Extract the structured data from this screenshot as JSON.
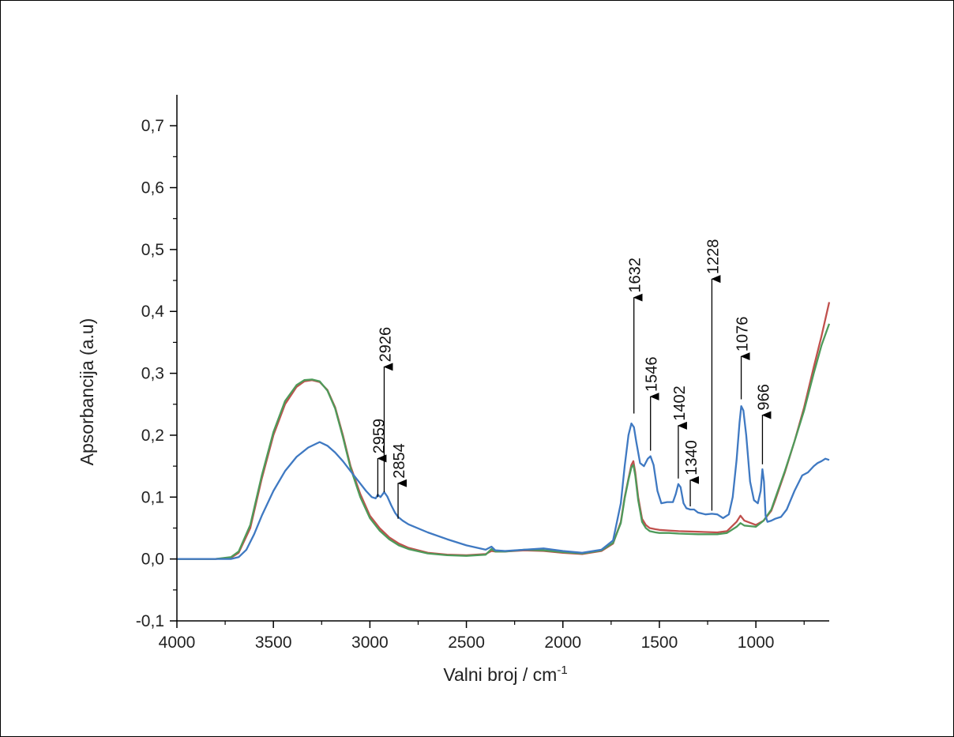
{
  "chart_data": {
    "type": "line",
    "title": "",
    "xlabel": "Valni broj / cm",
    "xlabel_sup": "-1",
    "ylabel": "Apsorbancija (a.u)",
    "xlim": [
      4000,
      620
    ],
    "ylim": [
      -0.1,
      0.75
    ],
    "x_reversed": true,
    "grid": false,
    "legend": "none",
    "x_ticks": [
      {
        "value": 4000,
        "label": "4000"
      },
      {
        "value": 3500,
        "label": "3500"
      },
      {
        "value": 3000,
        "label": "3000"
      },
      {
        "value": 2500,
        "label": "2500"
      },
      {
        "value": 2000,
        "label": "2000"
      },
      {
        "value": 1500,
        "label": "1500"
      },
      {
        "value": 1000,
        "label": "1000"
      }
    ],
    "y_ticks": [
      {
        "value": -0.1,
        "label": "-0,1"
      },
      {
        "value": 0.0,
        "label": "0,0"
      },
      {
        "value": 0.1,
        "label": "0,1"
      },
      {
        "value": 0.2,
        "label": "0,2"
      },
      {
        "value": 0.3,
        "label": "0,3"
      },
      {
        "value": 0.4,
        "label": "0,4"
      },
      {
        "value": 0.5,
        "label": "0,5"
      },
      {
        "value": 0.6,
        "label": "0,6"
      },
      {
        "value": 0.7,
        "label": "0,7"
      }
    ],
    "series": [
      {
        "color": "#c0504d",
        "x": [
          4000,
          3800,
          3720,
          3680,
          3620,
          3560,
          3500,
          3440,
          3380,
          3340,
          3300,
          3260,
          3220,
          3180,
          3140,
          3100,
          3050,
          3000,
          2950,
          2900,
          2850,
          2800,
          2700,
          2600,
          2500,
          2400,
          2370,
          2350,
          2300,
          2200,
          2100,
          2000,
          1900,
          1800,
          1740,
          1700,
          1680,
          1660,
          1645,
          1635,
          1625,
          1610,
          1590,
          1570,
          1550,
          1520,
          1500,
          1450,
          1400,
          1300,
          1200,
          1150,
          1100,
          1080,
          1060,
          1000,
          960,
          920,
          900,
          850,
          800,
          750,
          700,
          660,
          620
        ],
        "y": [
          0.0,
          0.0,
          0.002,
          0.01,
          0.05,
          0.13,
          0.2,
          0.25,
          0.278,
          0.287,
          0.289,
          0.286,
          0.273,
          0.245,
          0.2,
          0.15,
          0.105,
          0.07,
          0.05,
          0.035,
          0.025,
          0.018,
          0.01,
          0.007,
          0.006,
          0.008,
          0.013,
          0.012,
          0.012,
          0.014,
          0.013,
          0.01,
          0.008,
          0.013,
          0.025,
          0.06,
          0.1,
          0.13,
          0.152,
          0.158,
          0.14,
          0.1,
          0.065,
          0.055,
          0.05,
          0.048,
          0.047,
          0.046,
          0.045,
          0.044,
          0.043,
          0.045,
          0.06,
          0.07,
          0.062,
          0.055,
          0.062,
          0.078,
          0.095,
          0.14,
          0.19,
          0.245,
          0.31,
          0.36,
          0.415
        ]
      },
      {
        "color": "#4e9a5a",
        "x": [
          4000,
          3800,
          3720,
          3680,
          3620,
          3560,
          3500,
          3440,
          3380,
          3340,
          3300,
          3260,
          3220,
          3180,
          3140,
          3100,
          3050,
          3000,
          2950,
          2900,
          2850,
          2800,
          2700,
          2600,
          2500,
          2400,
          2370,
          2350,
          2300,
          2200,
          2100,
          2000,
          1900,
          1800,
          1740,
          1700,
          1680,
          1660,
          1645,
          1635,
          1625,
          1610,
          1590,
          1570,
          1550,
          1520,
          1500,
          1450,
          1400,
          1300,
          1200,
          1150,
          1100,
          1080,
          1060,
          1000,
          960,
          920,
          900,
          850,
          800,
          750,
          700,
          660,
          620
        ],
        "y": [
          0.0,
          0.0,
          0.003,
          0.012,
          0.055,
          0.135,
          0.205,
          0.255,
          0.281,
          0.289,
          0.29,
          0.287,
          0.272,
          0.243,
          0.197,
          0.147,
          0.1,
          0.066,
          0.046,
          0.032,
          0.022,
          0.016,
          0.009,
          0.006,
          0.005,
          0.007,
          0.016,
          0.012,
          0.012,
          0.015,
          0.014,
          0.011,
          0.009,
          0.014,
          0.026,
          0.058,
          0.098,
          0.128,
          0.148,
          0.152,
          0.135,
          0.095,
          0.06,
          0.05,
          0.045,
          0.043,
          0.042,
          0.042,
          0.041,
          0.04,
          0.04,
          0.042,
          0.052,
          0.058,
          0.054,
          0.052,
          0.062,
          0.08,
          0.098,
          0.142,
          0.19,
          0.24,
          0.3,
          0.345,
          0.38
        ]
      },
      {
        "color": "#3f79c2",
        "x": [
          4000,
          3800,
          3720,
          3680,
          3640,
          3600,
          3560,
          3500,
          3440,
          3380,
          3320,
          3280,
          3260,
          3220,
          3180,
          3140,
          3100,
          3060,
          3020,
          2990,
          2970,
          2959,
          2945,
          2926,
          2910,
          2890,
          2870,
          2854,
          2830,
          2800,
          2700,
          2600,
          2500,
          2400,
          2370,
          2350,
          2300,
          2200,
          2100,
          2000,
          1900,
          1800,
          1740,
          1700,
          1680,
          1660,
          1645,
          1632,
          1620,
          1600,
          1580,
          1560,
          1546,
          1530,
          1510,
          1490,
          1460,
          1430,
          1415,
          1402,
          1390,
          1375,
          1360,
          1340,
          1320,
          1300,
          1260,
          1228,
          1200,
          1170,
          1140,
          1120,
          1100,
          1085,
          1076,
          1065,
          1050,
          1030,
          1010,
          990,
          975,
          966,
          958,
          950,
          940,
          920,
          900,
          870,
          840,
          800,
          760,
          730,
          700,
          680,
          660,
          640,
          620
        ],
        "y": [
          0.0,
          0.0,
          0.0,
          0.003,
          0.015,
          0.04,
          0.07,
          0.11,
          0.142,
          0.165,
          0.18,
          0.186,
          0.189,
          0.183,
          0.172,
          0.158,
          0.142,
          0.126,
          0.11,
          0.1,
          0.098,
          0.104,
          0.1,
          0.108,
          0.101,
          0.087,
          0.075,
          0.068,
          0.062,
          0.056,
          0.043,
          0.032,
          0.022,
          0.015,
          0.02,
          0.014,
          0.013,
          0.015,
          0.017,
          0.013,
          0.01,
          0.015,
          0.03,
          0.09,
          0.15,
          0.2,
          0.219,
          0.213,
          0.19,
          0.155,
          0.15,
          0.162,
          0.166,
          0.152,
          0.11,
          0.09,
          0.092,
          0.092,
          0.105,
          0.121,
          0.116,
          0.09,
          0.082,
          0.08,
          0.08,
          0.075,
          0.072,
          0.073,
          0.072,
          0.066,
          0.072,
          0.1,
          0.16,
          0.22,
          0.247,
          0.24,
          0.2,
          0.125,
          0.095,
          0.09,
          0.11,
          0.145,
          0.125,
          0.07,
          0.06,
          0.062,
          0.065,
          0.068,
          0.08,
          0.11,
          0.135,
          0.14,
          0.15,
          0.155,
          0.158,
          0.162,
          0.16
        ]
      }
    ],
    "annotations": [
      {
        "label": "2959",
        "x": 2959,
        "y_tail": 0.1,
        "y_head": 0.165
      },
      {
        "label": "2926",
        "x": 2926,
        "y_tail": 0.108,
        "y_head": 0.313
      },
      {
        "label": "2854",
        "x": 2854,
        "y_tail": 0.065,
        "y_head": 0.125
      },
      {
        "label": "1632",
        "x": 1632,
        "y_tail": 0.235,
        "y_head": 0.425
      },
      {
        "label": "1546",
        "x": 1546,
        "y_tail": 0.175,
        "y_head": 0.265
      },
      {
        "label": "1402",
        "x": 1402,
        "y_tail": 0.13,
        "y_head": 0.218
      },
      {
        "label": "1340",
        "x": 1340,
        "y_tail": 0.085,
        "y_head": 0.13
      },
      {
        "label": "1228",
        "x": 1228,
        "y_tail": 0.078,
        "y_head": 0.455
      },
      {
        "label": "1076",
        "x": 1076,
        "y_tail": 0.258,
        "y_head": 0.33
      },
      {
        "label": "966",
        "x": 966,
        "y_tail": 0.153,
        "y_head": 0.235
      }
    ]
  }
}
